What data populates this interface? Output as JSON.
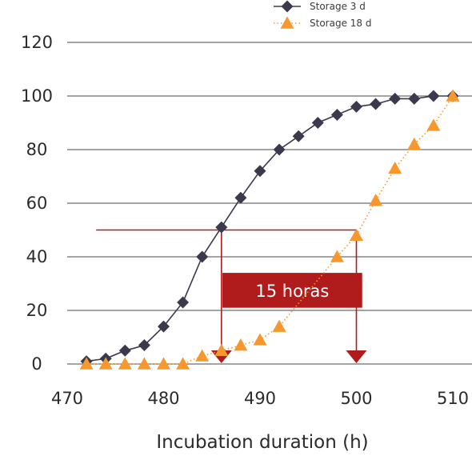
{
  "chart_data": {
    "type": "line",
    "xlabel": "Incubation duration (h)",
    "ylabel": "",
    "xlim": [
      470,
      510
    ],
    "ylim": [
      0,
      120
    ],
    "x_ticks": [
      470,
      480,
      490,
      500,
      510
    ],
    "y_ticks": [
      0,
      20,
      40,
      60,
      80,
      100,
      120
    ],
    "grid": "horizontal",
    "legend_position": "top-right",
    "series": [
      {
        "name": "Storage 3 d",
        "color": "#3b3a4c",
        "marker": "diamond",
        "line": "solid",
        "x": [
          472,
          474,
          476,
          478,
          480,
          482,
          484,
          486,
          488,
          490,
          492,
          494,
          496,
          498,
          500,
          502,
          504,
          506,
          508,
          510
        ],
        "values": [
          1,
          2,
          5,
          7,
          14,
          23,
          40,
          51,
          62,
          72,
          80,
          85,
          90,
          93,
          96,
          97,
          99,
          99,
          100,
          100
        ]
      },
      {
        "name": "Storage 18 d",
        "color": "#f7982e",
        "marker": "triangle",
        "line": "dotted",
        "x": [
          472,
          474,
          476,
          478,
          480,
          482,
          484,
          486,
          488,
          490,
          492,
          498,
          500,
          502,
          504,
          506,
          508,
          510
        ],
        "values": [
          0,
          0,
          0,
          0,
          0,
          0,
          3,
          5,
          7,
          9,
          14,
          40,
          48,
          61,
          73,
          82,
          89,
          100
        ]
      }
    ],
    "annotations": {
      "text": "15 horas",
      "color": "#b01c1c",
      "level": 50,
      "from_x": 486,
      "to_x": 500
    }
  }
}
